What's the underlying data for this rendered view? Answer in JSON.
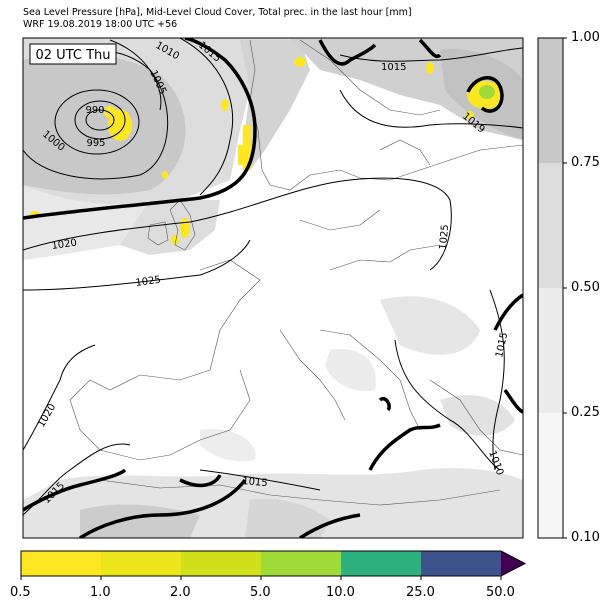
{
  "header": {
    "title_line1": "Sea Level Pressure [hPa], Mid-Level Cloud Cover, Total prec. in the last hour [mm]",
    "title_line2": "WRF 19.08.2019 18:00 UTC +56"
  },
  "map": {
    "valid_time_label": "02 UTC Thu",
    "low_center_labels": [
      "990",
      "995"
    ],
    "isobar_labels": [
      {
        "text": "1000"
      },
      {
        "text": "1005"
      },
      {
        "text": "1010"
      },
      {
        "text": "1015"
      },
      {
        "text": "1015"
      },
      {
        "text": "1019"
      },
      {
        "text": "1020"
      },
      {
        "text": "1025"
      },
      {
        "text": "1025"
      },
      {
        "text": "1015"
      },
      {
        "text": "1010"
      },
      {
        "text": "1020"
      },
      {
        "text": "1015"
      },
      {
        "text": "1015"
      }
    ],
    "colors": {
      "land_bg": "#ffffff",
      "cloud_light": "#eeeeee",
      "cloud_mid": "#dddddd",
      "cloud_dense": "#c8c8c8",
      "precip_light": "#fde725"
    }
  },
  "cloud_colorbar": {
    "ticks": [
      "1.00",
      "0.75",
      "0.50",
      "0.25",
      "0.10"
    ],
    "colors": [
      "#c8c8c8",
      "#dcdcdc",
      "#ececec",
      "#f7f7f7"
    ]
  },
  "precip_colorbar": {
    "ticks": [
      "0.5",
      "1.0",
      "2.0",
      "5.0",
      "10.0",
      "25.0",
      "50.0"
    ],
    "colors": [
      "#fde725",
      "#ede51b",
      "#d0e11c",
      "#a0da39",
      "#4ac16d",
      "#2db27d",
      "#3b528b",
      "#440154"
    ]
  }
}
